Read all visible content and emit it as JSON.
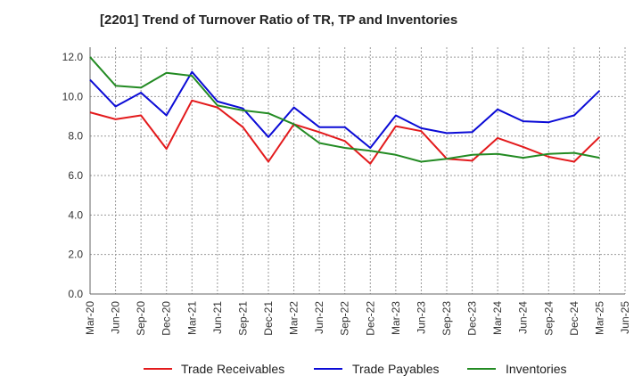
{
  "chart_data": {
    "type": "line",
    "title": "[2201]  Trend of Turnover Ratio of TR, TP and Inventories",
    "xlabel": "",
    "ylabel": "",
    "categories": [
      "Mar-20",
      "Jun-20",
      "Sep-20",
      "Dec-20",
      "Mar-21",
      "Jun-21",
      "Sep-21",
      "Dec-21",
      "Mar-22",
      "Jun-22",
      "Sep-22",
      "Dec-22",
      "Mar-23",
      "Jun-23",
      "Sep-23",
      "Dec-23",
      "Mar-24",
      "Jun-24",
      "Sep-24",
      "Dec-24",
      "Mar-25"
    ],
    "x_tick_labels": [
      "Mar-20",
      "Jun-20",
      "Sep-20",
      "Dec-20",
      "Mar-21",
      "Jun-21",
      "Sep-21",
      "Dec-21",
      "Mar-22",
      "Jun-22",
      "Sep-22",
      "Dec-22",
      "Mar-23",
      "Jun-23",
      "Sep-23",
      "Dec-23",
      "Mar-24",
      "Jun-24",
      "Sep-24",
      "Dec-24",
      "Mar-25",
      "Jun-25"
    ],
    "y_tick_labels": [
      "0.0",
      "2.0",
      "4.0",
      "6.0",
      "8.0",
      "10.0",
      "12.0"
    ],
    "ylim": [
      0,
      12.5
    ],
    "grid": true,
    "legend_position": "bottom",
    "series": [
      {
        "name": "Trade Receivables",
        "color": "#e31a1c",
        "values": [
          9.2,
          8.85,
          9.05,
          7.35,
          9.8,
          9.45,
          8.45,
          6.7,
          8.6,
          8.2,
          7.75,
          6.6,
          8.5,
          8.25,
          6.85,
          6.75,
          7.9,
          7.45,
          6.95,
          6.7,
          7.95
        ]
      },
      {
        "name": "Trade Payables",
        "color": "#0b0bd6",
        "values": [
          10.85,
          9.5,
          10.2,
          9.05,
          11.25,
          9.75,
          9.4,
          7.95,
          9.45,
          8.45,
          8.45,
          7.4,
          9.05,
          8.4,
          8.15,
          8.2,
          9.35,
          8.75,
          8.7,
          9.05,
          10.3
        ]
      },
      {
        "name": "Inventories",
        "color": "#238b23",
        "values": [
          12.0,
          10.55,
          10.45,
          11.2,
          11.05,
          9.55,
          9.3,
          9.15,
          8.6,
          7.65,
          7.4,
          7.25,
          7.05,
          6.7,
          6.85,
          7.05,
          7.1,
          6.9,
          7.1,
          7.15,
          6.9
        ]
      }
    ]
  }
}
